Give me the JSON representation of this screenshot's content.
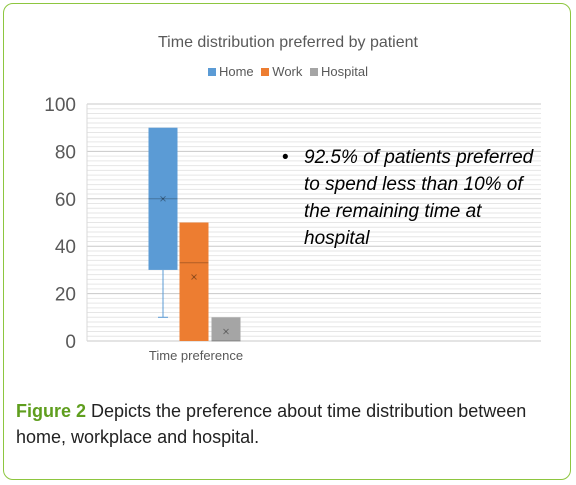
{
  "chart_data": {
    "type": "box",
    "title": "Time distribution preferred by patient",
    "categories": [
      "Time preference"
    ],
    "ylim": [
      0,
      100
    ],
    "yticks": [
      0,
      20,
      40,
      60,
      80,
      100
    ],
    "grid": true,
    "legend_position": "top",
    "series": [
      {
        "name": "Home",
        "color": "#5b9bd5",
        "min": 10,
        "q1": 30,
        "median": 60,
        "q3": 90,
        "max": 90,
        "mean": 60
      },
      {
        "name": "Work",
        "color": "#ed7d31",
        "min": 0,
        "q1": 0,
        "median": 33,
        "q3": 50,
        "max": 50,
        "mean": 27
      },
      {
        "name": "Hospital",
        "color": "#a5a5a5",
        "min": 0,
        "q1": 0,
        "median": 0,
        "q3": 10,
        "max": 10,
        "mean": 4
      }
    ],
    "annotation": "92.5% of patients preferred to spend less than 10% of the remaining time at hospital"
  },
  "caption": {
    "label": "Figure 2",
    "text": " Depicts the preference about time distribution between home, workplace and hospital."
  }
}
